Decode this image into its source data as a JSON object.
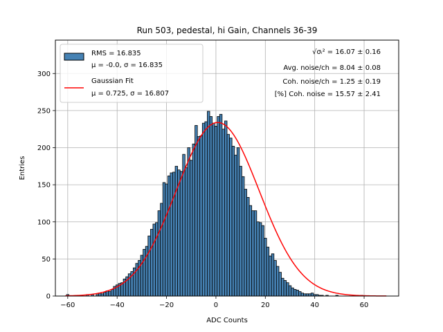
{
  "chart_data": {
    "type": "bar",
    "title": "Run 503, pedestal, hi Gain, Channels 36-39",
    "xlabel": "ADC Counts",
    "ylabel": "Entries",
    "xlim": [
      -65,
      74
    ],
    "ylim": [
      0,
      345
    ],
    "grid": true,
    "legend_placement": "top-left",
    "bin_width": 1,
    "x_ticks": [
      -60,
      -40,
      -20,
      0,
      20,
      40,
      60
    ],
    "x_tick_labels": [
      "−60",
      "−40",
      "−20",
      "0",
      "20",
      "40",
      "60"
    ],
    "y_ticks": [
      0,
      50,
      100,
      150,
      200,
      250,
      300
    ],
    "y_tick_labels": [
      "0",
      "50",
      "100",
      "150",
      "200",
      "250",
      "300"
    ],
    "series": [
      {
        "name": "RMS = 16.835",
        "name_line2": "μ = -0.0, σ = 16.835",
        "kind": "histogram",
        "bin_start": -60,
        "values": [
          2,
          0,
          0,
          0,
          0,
          0,
          0,
          0,
          2,
          0,
          2,
          0,
          2,
          4,
          3,
          5,
          7,
          6,
          9,
          13,
          15,
          17,
          18,
          23,
          26,
          30,
          33,
          38,
          44,
          48,
          55,
          63,
          67,
          81,
          90,
          97,
          99,
          115,
          125,
          153,
          151,
          162,
          166,
          167,
          175,
          170,
          168,
          191,
          173,
          200,
          183,
          205,
          230,
          215,
          216,
          233,
          235,
          249,
          242,
          233,
          229,
          242,
          245,
          225,
          236,
          218,
          213,
          202,
          190,
          200,
          175,
          161,
          144,
          133,
          122,
          115,
          115,
          100,
          99,
          95,
          78,
          66,
          54,
          57,
          48,
          40,
          32,
          24,
          21,
          18,
          14,
          11,
          9,
          8,
          6,
          4,
          3,
          3,
          3,
          4,
          2,
          2,
          1,
          1,
          0,
          1,
          0,
          0,
          0,
          1,
          0,
          0,
          0,
          0,
          0,
          0,
          0,
          0,
          0,
          1
        ],
        "fill": "#4682b4",
        "edge": "#000000"
      },
      {
        "name": "Gaussian Fit",
        "name_line2": "μ = 0.725, σ = 16.807",
        "kind": "gaussian",
        "mu": 0.725,
        "sigma": 16.807,
        "amplitude": 234,
        "color": "#ff0000"
      }
    ],
    "annotations": [
      {
        "prefix": "√σᵢ²",
        "text": " = 16.07 ± 0.16"
      },
      {
        "text": "Avg. noise/ch = 8.04 ± 0.08"
      },
      {
        "text": "Coh. noise/ch = 1.25 ± 0.19"
      },
      {
        "text": "[%] Coh. noise = 15.57 ± 2.41"
      }
    ]
  }
}
